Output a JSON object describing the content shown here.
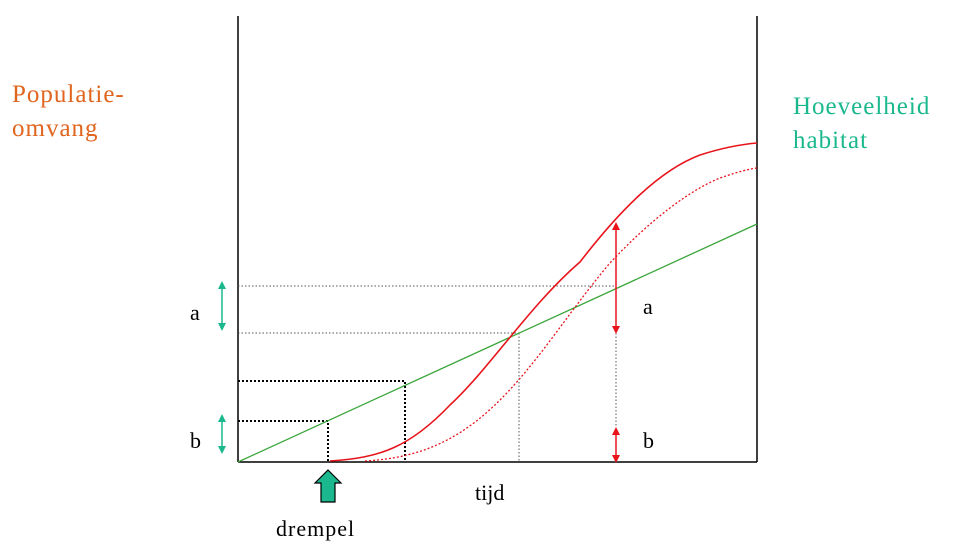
{
  "y_axis_label": [
    "Populatie-",
    "omvang"
  ],
  "right_axis_label": [
    "Hoeveelheid",
    "habitat"
  ],
  "x_axis_label": "tijd",
  "threshold_label": "drempel",
  "interval_labels": {
    "a_left": "a",
    "b_left": "b",
    "a_right": "a",
    "b_right": "b"
  },
  "colors": {
    "axes": "#000000",
    "population_curve": "#e8141c",
    "population_curve_delayed": "#e8141c",
    "habitat_line": "#3aa53a",
    "marker_teal": "#1bb88e",
    "population_label": "#e0651e",
    "habitat_label": "#1bb88e"
  },
  "icons": {
    "threshold_arrow": "up-arrow-icon"
  }
}
